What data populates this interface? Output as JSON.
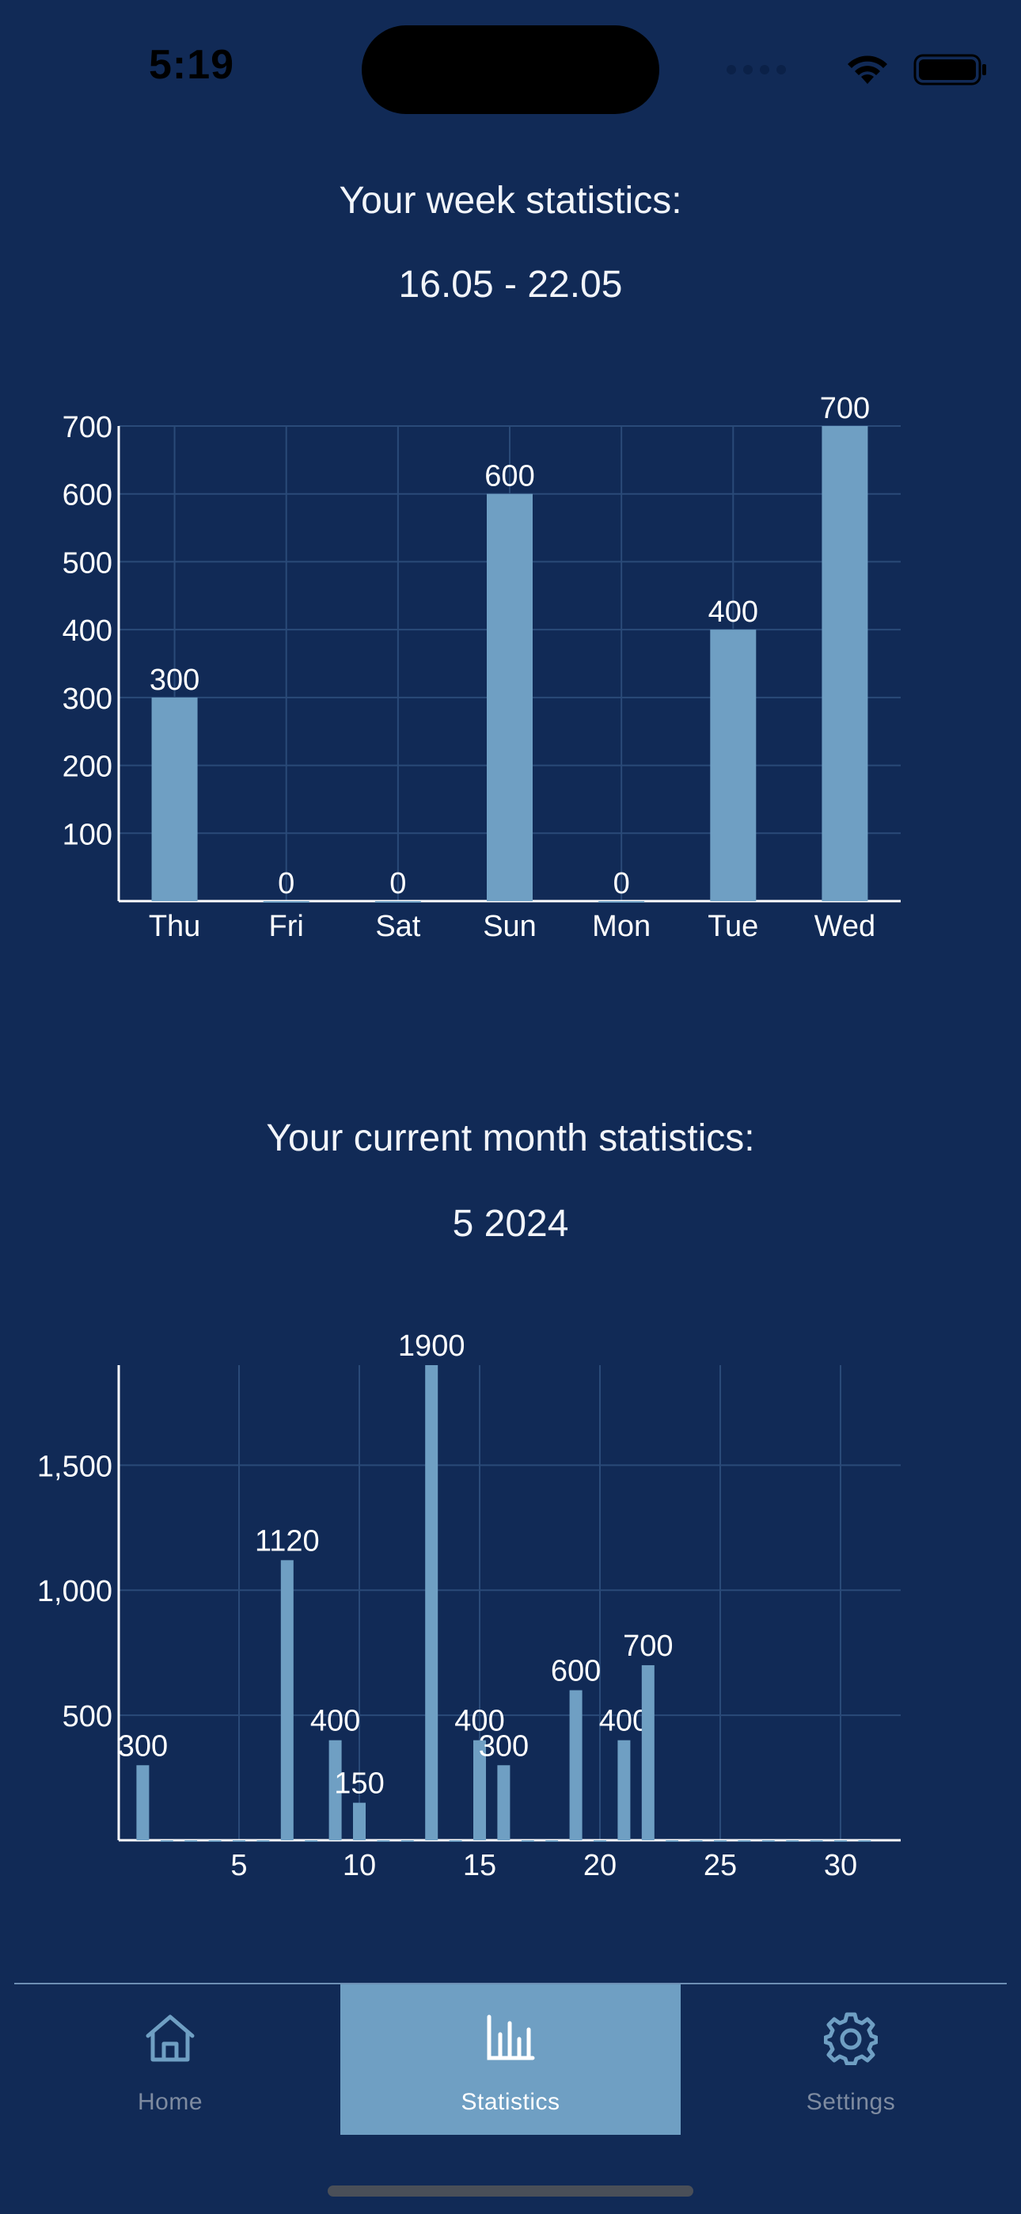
{
  "status_bar": {
    "time": "5:19"
  },
  "week": {
    "title": "Your week statistics:",
    "range": "16.05 - 22.05"
  },
  "month": {
    "title": "Your current month statistics:",
    "period": "5 2024"
  },
  "chart_data": [
    {
      "type": "bar",
      "categories": [
        "Thu",
        "Fri",
        "Sat",
        "Sun",
        "Mon",
        "Tue",
        "Wed"
      ],
      "values": [
        300,
        0,
        0,
        600,
        0,
        400,
        700
      ],
      "ylim": [
        0,
        700
      ],
      "yticks": [
        100,
        200,
        300,
        400,
        500,
        600,
        700
      ],
      "grid": true,
      "bar_color": "#6f9fc3"
    },
    {
      "type": "bar",
      "x": [
        1,
        2,
        3,
        4,
        5,
        6,
        7,
        8,
        9,
        10,
        11,
        12,
        13,
        14,
        15,
        16,
        17,
        18,
        19,
        20,
        21,
        22,
        23,
        24,
        25,
        26,
        27,
        28,
        29,
        30,
        31
      ],
      "values": [
        300,
        0,
        0,
        0,
        0,
        0,
        1120,
        0,
        400,
        150,
        0,
        0,
        1900,
        0,
        400,
        300,
        0,
        0,
        600,
        0,
        400,
        700,
        0,
        0,
        0,
        0,
        0,
        0,
        0,
        0,
        0
      ],
      "xlim": [
        0,
        32.5
      ],
      "ylim": [
        0,
        1900
      ],
      "xticks": [
        5,
        10,
        15,
        20,
        25,
        30
      ],
      "yticks": [
        500,
        1000,
        1500
      ],
      "ytick_labels": [
        "500",
        "1,000",
        "1,500"
      ],
      "grid": true,
      "bar_color": "#6f9fc3"
    }
  ],
  "tabs": [
    {
      "label": "Home",
      "icon": "house-icon",
      "active": false
    },
    {
      "label": "Statistics",
      "icon": "bar-chart-icon",
      "active": true
    },
    {
      "label": "Settings",
      "icon": "gear-icon",
      "active": false
    }
  ],
  "colors": {
    "background": "#112a56",
    "accent": "#6f9fc3",
    "grid": "#2a4a78",
    "inactive_tab": "#7e8ba0"
  }
}
